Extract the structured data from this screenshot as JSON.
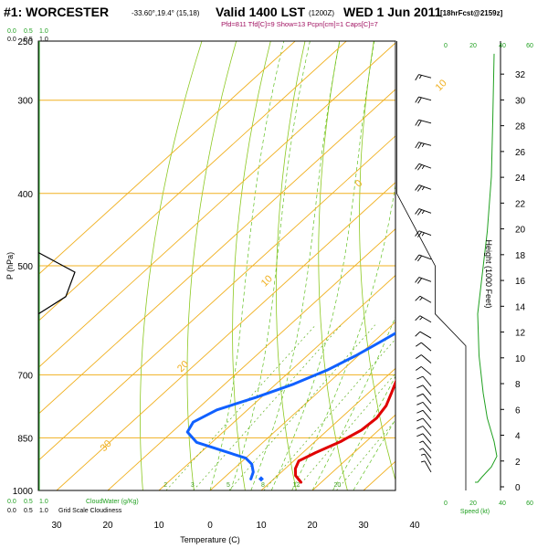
{
  "header": {
    "station": "#1: WORCESTER",
    "coords": "-33.60°,19.4° (15,18)",
    "valid": "Valid 1400 LST",
    "utc": "(1200Z)",
    "date": "WED 1 Jun 2011",
    "forecast": "[18hrFcst@2159z]",
    "indices": "Pfd=811 Tfd[C]=9 Show=13 Pcpn[cm]=1 Caps[C]=7"
  },
  "left_scale": {
    "top_values": [
      "0.0",
      "0.5",
      "1.0"
    ],
    "bottom_cloudwater": {
      "values": [
        "0.0",
        "0.5",
        "1.0"
      ],
      "label": "CloudWater (g/Kg)"
    },
    "bottom_cloudiness": {
      "values": [
        "0.0",
        "0.5",
        "1.0"
      ],
      "label": "Grid Scale Cloudiness"
    }
  },
  "right_scale": {
    "top_values": [
      "0",
      "20",
      "40",
      "60"
    ],
    "bottom_values": [
      "0",
      "20",
      "40",
      "60"
    ],
    "speed_label": "Speed (kt)"
  },
  "chart_data": {
    "type": "line",
    "title": "#1: WORCESTER",
    "xlabel": "Temperature (C)",
    "ylabel": "P (hPa)",
    "y2label": "Height (1000 Feet)",
    "xlim": [
      -35,
      45
    ],
    "ylim": [
      1000,
      250
    ],
    "x_ticks": [
      -30,
      -20,
      -10,
      0,
      10,
      20,
      30,
      40
    ],
    "x_tick_labels": [
      "30",
      "20",
      "10",
      "0",
      "10",
      "20",
      "30",
      "40"
    ],
    "pressure_ticks": [
      250,
      300,
      400,
      500,
      700,
      850,
      1000
    ],
    "pressure_tick_labels": [
      "250",
      "300",
      "400",
      "500",
      "700",
      "850",
      "1000"
    ],
    "height_ticks": [
      0,
      2,
      4,
      6,
      8,
      10,
      12,
      14,
      16,
      18,
      20,
      22,
      24,
      26,
      28,
      30,
      32
    ],
    "isotherms": [
      -80,
      -70,
      -60,
      -50,
      -40,
      -30,
      -20,
      -10,
      0,
      10,
      20,
      30,
      40
    ],
    "isotherm_labels": [
      {
        "text": "10",
        "p": 292,
        "t": -41
      },
      {
        "text": "0",
        "p": 393,
        "t": -36
      },
      {
        "text": "10",
        "p": 534,
        "t": -33
      },
      {
        "text": "20",
        "p": 695,
        "t": -31
      },
      {
        "text": "30",
        "p": 888,
        "t": -29
      },
      {
        "text": "0",
        "p": 346,
        "t": 36
      },
      {
        "text": "10",
        "p": 418,
        "t": 38
      },
      {
        "text": "20",
        "p": 488,
        "t": 41
      },
      {
        "text": "30",
        "p": 560,
        "t": 44
      }
    ],
    "mixing_ratio_labels": [
      "2",
      "3",
      "5",
      "8",
      "12",
      "20"
    ],
    "mixing_ratio_values": [
      2,
      3,
      5,
      8,
      12,
      20
    ],
    "dry_adiabats_theta": [
      260,
      270,
      280,
      290,
      300,
      310,
      320,
      330,
      340,
      350,
      360,
      370,
      380,
      390,
      400,
      410,
      420,
      430,
      440,
      450,
      460
    ],
    "moist_adiabats_tw": [
      0,
      4,
      8,
      12,
      16,
      20,
      24,
      28
    ],
    "series": [
      {
        "name": "Temperature",
        "color": "#e00000",
        "points": [
          [
            16,
            975
          ],
          [
            13.5,
            955
          ],
          [
            12,
            935
          ],
          [
            11,
            913
          ],
          [
            12.5,
            890
          ],
          [
            15,
            860
          ],
          [
            16.6,
            830
          ],
          [
            17,
            800
          ],
          [
            16.2,
            770
          ],
          [
            14.5,
            740
          ],
          [
            12,
            700
          ],
          [
            9.5,
            665
          ],
          [
            7,
            630
          ],
          [
            5,
            600
          ],
          [
            3,
            570
          ],
          [
            1,
            540
          ],
          [
            -0.5,
            512
          ],
          [
            -2,
            490
          ],
          [
            -4.5,
            460
          ],
          [
            -7,
            430
          ],
          [
            -9.5,
            400
          ],
          [
            -13.5,
            370
          ],
          [
            -18,
            340
          ],
          [
            -23,
            310
          ],
          [
            -28,
            285
          ],
          [
            -30.5,
            272
          ]
        ]
      },
      {
        "name": "Dewpoint",
        "color": "#1060ff",
        "points": [
          [
            5.5,
            965
          ],
          [
            4.5,
            945
          ],
          [
            2.5,
            922
          ],
          [
            0,
            905
          ],
          [
            -6,
            885
          ],
          [
            -13,
            862
          ],
          [
            -17,
            835
          ],
          [
            -18,
            810
          ],
          [
            -16,
            780
          ],
          [
            -11,
            750
          ],
          [
            -6.5,
            720
          ],
          [
            -3,
            690
          ],
          [
            -0.5,
            660
          ],
          [
            1.5,
            630
          ],
          [
            3.5,
            600
          ],
          [
            5.5,
            570
          ],
          [
            6.5,
            550
          ],
          [
            5.5,
            520
          ],
          [
            2,
            490
          ],
          [
            -2.5,
            460
          ],
          [
            -6,
            435
          ],
          [
            -11,
            410
          ],
          [
            -18,
            380
          ],
          [
            -28,
            345
          ],
          [
            -34,
            325
          ],
          [
            -35,
            310
          ],
          [
            -34,
            295
          ],
          [
            -35,
            272
          ]
        ]
      }
    ],
    "dewpoint_marker": {
      "t": 7.5,
      "p": 965,
      "color": "#1060ff"
    },
    "cloud_profile": {
      "color": "#000000",
      "points": [
        [
          0.0,
          480
        ],
        [
          0.8,
          510
        ],
        [
          0.6,
          550
        ],
        [
          0.0,
          580
        ]
      ]
    },
    "wind_speed_profile": {
      "color": "#20a020",
      "points": [
        [
          0,
          975
        ],
        [
          2,
          975
        ],
        [
          5,
          960
        ],
        [
          12,
          930
        ],
        [
          16,
          900
        ],
        [
          14,
          860
        ],
        [
          9,
          800
        ],
        [
          6,
          740
        ],
        [
          3,
          660
        ],
        [
          2,
          580
        ],
        [
          5,
          520
        ],
        [
          9,
          450
        ],
        [
          12,
          380
        ],
        [
          13,
          320
        ],
        [
          14,
          260
        ]
      ]
    },
    "tropopause_outline": {
      "color": "#000000",
      "points": [
        [
          36.5,
          250
        ],
        [
          36.5,
          400
        ],
        [
          44,
          500
        ],
        [
          44,
          580
        ],
        [
          50,
          640
        ],
        [
          50,
          1000
        ]
      ]
    },
    "wind_barbs": [
      {
        "p": 280,
        "dir": 285,
        "spd": 15
      },
      {
        "p": 300,
        "dir": 285,
        "spd": 20
      },
      {
        "p": 322,
        "dir": 285,
        "spd": 20
      },
      {
        "p": 345,
        "dir": 285,
        "spd": 25
      },
      {
        "p": 370,
        "dir": 290,
        "spd": 25
      },
      {
        "p": 395,
        "dir": 290,
        "spd": 25
      },
      {
        "p": 425,
        "dir": 290,
        "spd": 25
      },
      {
        "p": 455,
        "dir": 290,
        "spd": 25
      },
      {
        "p": 490,
        "dir": 290,
        "spd": 20
      },
      {
        "p": 525,
        "dir": 290,
        "spd": 20
      },
      {
        "p": 560,
        "dir": 300,
        "spd": 15
      },
      {
        "p": 595,
        "dir": 300,
        "spd": 15
      },
      {
        "p": 625,
        "dir": 300,
        "spd": 10
      },
      {
        "p": 650,
        "dir": 310,
        "spd": 10
      },
      {
        "p": 675,
        "dir": 310,
        "spd": 10
      },
      {
        "p": 700,
        "dir": 310,
        "spd": 10
      },
      {
        "p": 725,
        "dir": 320,
        "spd": 10
      },
      {
        "p": 745,
        "dir": 320,
        "spd": 10
      },
      {
        "p": 765,
        "dir": 320,
        "spd": 10
      },
      {
        "p": 785,
        "dir": 320,
        "spd": 10
      },
      {
        "p": 805,
        "dir": 320,
        "spd": 10
      },
      {
        "p": 825,
        "dir": 320,
        "spd": 10
      },
      {
        "p": 845,
        "dir": 320,
        "spd": 10
      },
      {
        "p": 865,
        "dir": 320,
        "spd": 10
      },
      {
        "p": 885,
        "dir": 320,
        "spd": 5
      },
      {
        "p": 905,
        "dir": 320,
        "spd": 5
      },
      {
        "p": 925,
        "dir": 330,
        "spd": 5
      },
      {
        "p": 945,
        "dir": 330,
        "spd": 5
      }
    ]
  }
}
